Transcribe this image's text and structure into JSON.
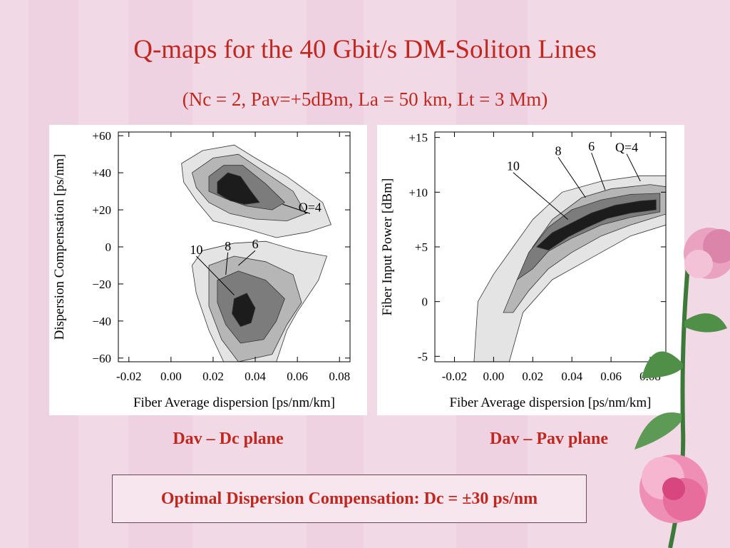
{
  "slide": {
    "title": "Q-maps for the 40 Gbit/s DM-Soliton Lines",
    "subtitle": "(Nc = 2, Pav=+5dBm, La = 50 km, Lt = 3 Mm)",
    "caption_left": "Dav – Dc plane",
    "caption_right": "Dav – Pav plane",
    "conclusion": "Optimal Dispersion Compensation: Dc = ±30 ps/nm"
  },
  "colors": {
    "title": "#c0281f",
    "background": "#f2d9e6",
    "contour_q4": "#e4e4e4",
    "contour_q6": "#b6b6b6",
    "contour_q8": "#7c7c7c",
    "contour_q10": "#1c1c1c"
  },
  "chart_data": [
    {
      "type": "heatmap",
      "title": "",
      "xlabel": "Fiber Average dispersion [ps/nm/km]",
      "ylabel": "Dispersion Compensation [ps/nm]",
      "xlim": [
        -0.025,
        0.085
      ],
      "ylim": [
        -62,
        62
      ],
      "xticks": [
        -0.02,
        0.0,
        0.02,
        0.04,
        0.06,
        0.08
      ],
      "xtick_labels": [
        "-0.02",
        "0.00",
        "0.02",
        "0.04",
        "0.06",
        "0.08"
      ],
      "yticks": [
        60,
        40,
        20,
        0,
        -20,
        -40,
        -60
      ],
      "ytick_labels": [
        "+60",
        "+40",
        "+20",
        "0",
        "−20",
        "−40",
        "−60"
      ],
      "levels": [
        {
          "q": 4,
          "color": "#e4e4e4",
          "regions": [
            [
              [
                0.005,
                45
              ],
              [
                0.015,
                52
              ],
              [
                0.03,
                55
              ],
              [
                0.04,
                48
              ],
              [
                0.055,
                38
              ],
              [
                0.072,
                24
              ],
              [
                0.076,
                12
              ],
              [
                0.065,
                8
              ],
              [
                0.05,
                5
              ],
              [
                0.035,
                10
              ],
              [
                0.02,
                14
              ],
              [
                0.012,
                25
              ],
              [
                0.006,
                35
              ]
            ],
            [
              [
                0.015,
                -2
              ],
              [
                0.03,
                2
              ],
              [
                0.045,
                3
              ],
              [
                0.06,
                -2
              ],
              [
                0.074,
                -5
              ],
              [
                0.07,
                -18
              ],
              [
                0.06,
                -35
              ],
              [
                0.055,
                -45
              ],
              [
                0.05,
                -62
              ],
              [
                0.025,
                -62
              ],
              [
                0.018,
                -45
              ],
              [
                0.012,
                -25
              ],
              [
                0.01,
                -10
              ]
            ]
          ]
        },
        {
          "q": 6,
          "color": "#b6b6b6",
          "regions": [
            [
              [
                0.01,
                40
              ],
              [
                0.02,
                48
              ],
              [
                0.032,
                50
              ],
              [
                0.045,
                40
              ],
              [
                0.058,
                30
              ],
              [
                0.064,
                18
              ],
              [
                0.055,
                14
              ],
              [
                0.04,
                15
              ],
              [
                0.028,
                18
              ],
              [
                0.018,
                24
              ],
              [
                0.012,
                32
              ]
            ],
            [
              [
                0.018,
                -10
              ],
              [
                0.03,
                -5
              ],
              [
                0.045,
                -8
              ],
              [
                0.058,
                -15
              ],
              [
                0.062,
                -30
              ],
              [
                0.055,
                -42
              ],
              [
                0.048,
                -58
              ],
              [
                0.032,
                -62
              ],
              [
                0.024,
                -50
              ],
              [
                0.018,
                -32
              ]
            ]
          ]
        },
        {
          "q": 8,
          "color": "#7c7c7c",
          "regions": [
            [
              [
                0.018,
                38
              ],
              [
                0.025,
                44
              ],
              [
                0.034,
                44
              ],
              [
                0.045,
                34
              ],
              [
                0.054,
                24
              ],
              [
                0.048,
                20
              ],
              [
                0.036,
                22
              ],
              [
                0.026,
                26
              ],
              [
                0.018,
                30
              ]
            ],
            [
              [
                0.022,
                -18
              ],
              [
                0.032,
                -13
              ],
              [
                0.045,
                -18
              ],
              [
                0.054,
                -28
              ],
              [
                0.05,
                -40
              ],
              [
                0.044,
                -50
              ],
              [
                0.033,
                -52
              ],
              [
                0.026,
                -42
              ],
              [
                0.022,
                -30
              ]
            ]
          ]
        },
        {
          "q": 10,
          "color": "#1c1c1c",
          "regions": [
            [
              [
                0.022,
                35
              ],
              [
                0.027,
                40
              ],
              [
                0.033,
                38
              ],
              [
                0.038,
                30
              ],
              [
                0.042,
                24
              ],
              [
                0.035,
                23
              ],
              [
                0.028,
                25
              ],
              [
                0.022,
                29
              ]
            ],
            [
              [
                0.03,
                -28
              ],
              [
                0.036,
                -25
              ],
              [
                0.04,
                -33
              ],
              [
                0.038,
                -41
              ],
              [
                0.033,
                -43
              ],
              [
                0.029,
                -36
              ]
            ]
          ]
        }
      ],
      "annotations": [
        {
          "text": "Q=4",
          "x": 0.066,
          "y": 18,
          "to_x": 0.053,
          "to_y": 23
        },
        {
          "text": "6",
          "x": 0.04,
          "y": -2,
          "to_x": 0.032,
          "to_y": -10
        },
        {
          "text": "8",
          "x": 0.027,
          "y": -3,
          "to_x": 0.026,
          "to_y": -15
        },
        {
          "text": "10",
          "x": 0.012,
          "y": -5,
          "to_x": 0.03,
          "to_y": -26
        }
      ]
    },
    {
      "type": "heatmap",
      "title": "",
      "xlabel": "Fiber Average dispersion [ps/nm/km]",
      "ylabel": "Fiber Input Power [dBm]",
      "xlim": [
        -0.03,
        0.088
      ],
      "ylim": [
        -5.5,
        15.5
      ],
      "xticks": [
        -0.02,
        0.0,
        0.02,
        0.04,
        0.06,
        0.08
      ],
      "xtick_labels": [
        "-0.02",
        "0.00",
        "0.02",
        "0.04",
        "0.06",
        "0.08"
      ],
      "yticks": [
        15,
        10,
        5,
        0,
        -5
      ],
      "ytick_labels": [
        "+15",
        "+10",
        "+5",
        "0",
        "-5"
      ],
      "levels": [
        {
          "q": 4,
          "color": "#e4e4e4",
          "regions": [
            [
              [
                -0.01,
                -5.5
              ],
              [
                -0.008,
                0
              ],
              [
                0.0,
                2.5
              ],
              [
                0.01,
                5
              ],
              [
                0.02,
                7.5
              ],
              [
                0.035,
                10
              ],
              [
                0.055,
                11
              ],
              [
                0.075,
                11.5
              ],
              [
                0.088,
                11.5
              ],
              [
                0.088,
                7
              ],
              [
                0.07,
                6
              ],
              [
                0.05,
                4
              ],
              [
                0.03,
                2
              ],
              [
                0.015,
                -1
              ],
              [
                0.008,
                -5.5
              ]
            ]
          ]
        },
        {
          "q": 6,
          "color": "#b6b6b6",
          "regions": [
            [
              [
                0.005,
                -1
              ],
              [
                0.012,
                2
              ],
              [
                0.02,
                5
              ],
              [
                0.03,
                7.5
              ],
              [
                0.045,
                9.5
              ],
              [
                0.06,
                10.3
              ],
              [
                0.08,
                10.7
              ],
              [
                0.088,
                10.5
              ],
              [
                0.088,
                8
              ],
              [
                0.07,
                7
              ],
              [
                0.055,
                6
              ],
              [
                0.04,
                4.5
              ],
              [
                0.028,
                3
              ],
              [
                0.018,
                1
              ],
              [
                0.01,
                -1
              ]
            ]
          ]
        },
        {
          "q": 8,
          "color": "#7c7c7c",
          "regions": [
            [
              [
                0.012,
                2
              ],
              [
                0.018,
                4.5
              ],
              [
                0.028,
                6.8
              ],
              [
                0.04,
                8.4
              ],
              [
                0.055,
                9.3
              ],
              [
                0.07,
                9.8
              ],
              [
                0.085,
                9.9
              ],
              [
                0.085,
                8.2
              ],
              [
                0.07,
                7.7
              ],
              [
                0.055,
                7
              ],
              [
                0.04,
                5.8
              ],
              [
                0.028,
                4.6
              ],
              [
                0.02,
                3
              ]
            ]
          ]
        },
        {
          "q": 10,
          "color": "#1c1c1c",
          "regions": [
            [
              [
                0.022,
                5
              ],
              [
                0.03,
                6.3
              ],
              [
                0.04,
                7.2
              ],
              [
                0.05,
                8.1
              ],
              [
                0.062,
                8.8
              ],
              [
                0.075,
                9.2
              ],
              [
                0.083,
                9.3
              ],
              [
                0.083,
                8.4
              ],
              [
                0.07,
                8.1
              ],
              [
                0.058,
                7.6
              ],
              [
                0.048,
                6.8
              ],
              [
                0.038,
                5.9
              ],
              [
                0.028,
                4.7
              ]
            ]
          ]
        }
      ],
      "annotations": [
        {
          "text": "Q=4",
          "x": 0.068,
          "y": 13.5,
          "to_x": 0.075,
          "to_y": 11
        },
        {
          "text": "6",
          "x": 0.05,
          "y": 13.6,
          "to_x": 0.057,
          "to_y": 10.2
        },
        {
          "text": "8",
          "x": 0.033,
          "y": 13.2,
          "to_x": 0.047,
          "to_y": 9.5
        },
        {
          "text": "10",
          "x": 0.01,
          "y": 11.8,
          "to_x": 0.038,
          "to_y": 7.5
        }
      ]
    }
  ]
}
